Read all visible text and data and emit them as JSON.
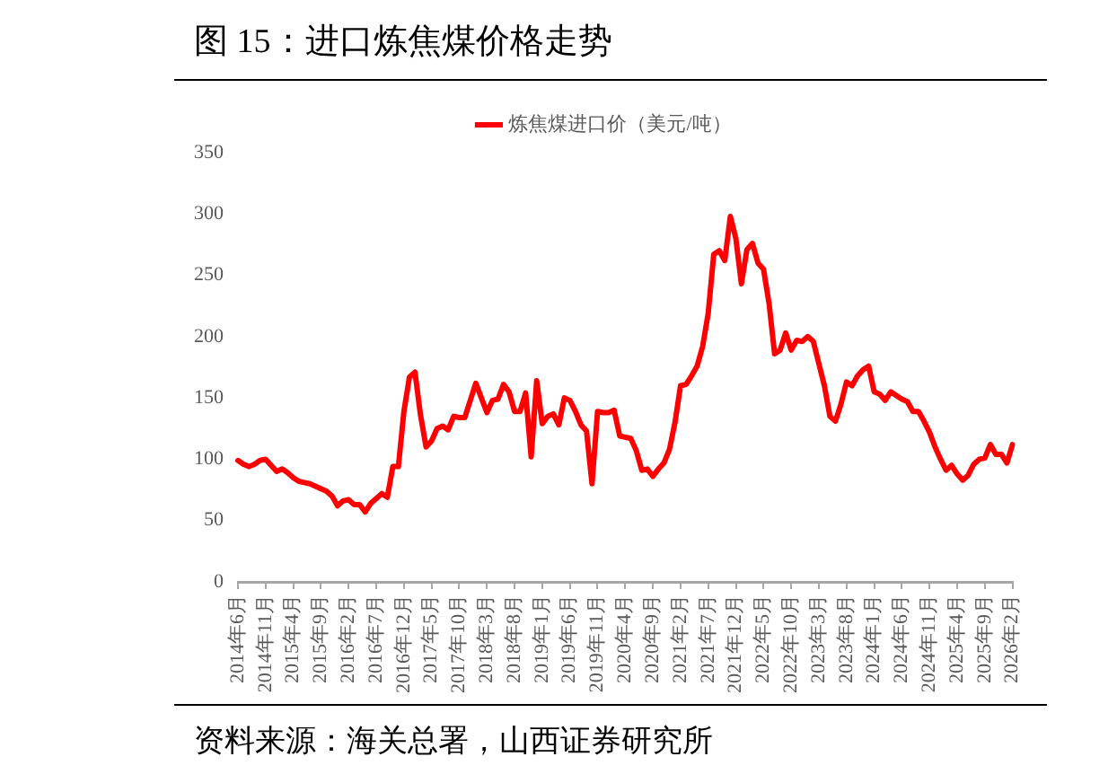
{
  "chart_data": {
    "type": "line",
    "title": "图 15：进口炼焦煤价格走势",
    "categories": [
      "2014年6月",
      null,
      null,
      null,
      null,
      "2014年11月",
      null,
      null,
      null,
      null,
      "2015年4月",
      null,
      null,
      null,
      null,
      "2015年9月",
      null,
      null,
      null,
      null,
      "2016年2月",
      null,
      null,
      null,
      null,
      "2016年7月",
      null,
      null,
      null,
      null,
      "2016年12月",
      null,
      null,
      null,
      null,
      "2017年5月",
      null,
      null,
      null,
      null,
      "2017年10月",
      null,
      null,
      null,
      null,
      "2018年3月",
      null,
      null,
      null,
      null,
      "2018年8月",
      null,
      null,
      null,
      null,
      "2019年1月",
      null,
      null,
      null,
      null,
      "2019年6月",
      null,
      null,
      null,
      null,
      "2019年11月",
      null,
      null,
      null,
      null,
      "2020年4月",
      null,
      null,
      null,
      null,
      "2020年9月",
      null,
      null,
      null,
      null,
      "2021年2月",
      null,
      null,
      null,
      null,
      "2021年7月",
      null,
      null,
      null,
      null,
      "2021年12月",
      null,
      null,
      null,
      null,
      "2022年5月",
      null,
      null,
      null,
      null,
      "2022年10月",
      null,
      null,
      null,
      null,
      "2023年3月",
      null,
      null,
      null,
      null,
      "2023年8月",
      null,
      null,
      null,
      null,
      "2024年1月",
      null,
      null,
      null,
      null,
      "2024年6月",
      null,
      null,
      null,
      null,
      "2024年11月",
      null,
      null,
      null,
      null,
      "2025年4月",
      null,
      null,
      null,
      null,
      "2025年9月",
      null,
      null,
      null,
      null,
      "2026年2月"
    ],
    "series": [
      {
        "name": "炼焦煤进口价（美元/吨）",
        "color": "#ff0000",
        "values": [
          99,
          96,
          94,
          96,
          99,
          100,
          95,
          90,
          92,
          89,
          85,
          82,
          81,
          80,
          78,
          76,
          74,
          70,
          62,
          66,
          67,
          63,
          63,
          57,
          64,
          68,
          72,
          69,
          94,
          94,
          139,
          167,
          171,
          136,
          110,
          115,
          125,
          127,
          124,
          135,
          134,
          134,
          148,
          162,
          150,
          138,
          148,
          149,
          161,
          155,
          139,
          139,
          154,
          102,
          164,
          129,
          135,
          137,
          128,
          150,
          148,
          139,
          128,
          123,
          80,
          139,
          138,
          138,
          140,
          119,
          118,
          117,
          107,
          91,
          92,
          86,
          92,
          97,
          108,
          130,
          160,
          161,
          168,
          176,
          192,
          219,
          267,
          270,
          262,
          298,
          280,
          243,
          271,
          276,
          260,
          255,
          227,
          186,
          189,
          203,
          189,
          197,
          196,
          200,
          196,
          178,
          160,
          135,
          131,
          145,
          163,
          160,
          168,
          173,
          176,
          155,
          153,
          148,
          155,
          152,
          149,
          147,
          139,
          139,
          131,
          122,
          110,
          100,
          91,
          95,
          88,
          83,
          87,
          96,
          100,
          101,
          112,
          104,
          104,
          97,
          112
        ]
      }
    ],
    "ylim": [
      0,
      350
    ],
    "yticks": [
      0,
      50,
      100,
      150,
      200,
      250,
      300,
      350
    ],
    "grid": false,
    "legend": "top",
    "marker": "none",
    "line_style": "solid",
    "annotations": [
      "资料来源：海关总署，山西证券研究所"
    ]
  }
}
